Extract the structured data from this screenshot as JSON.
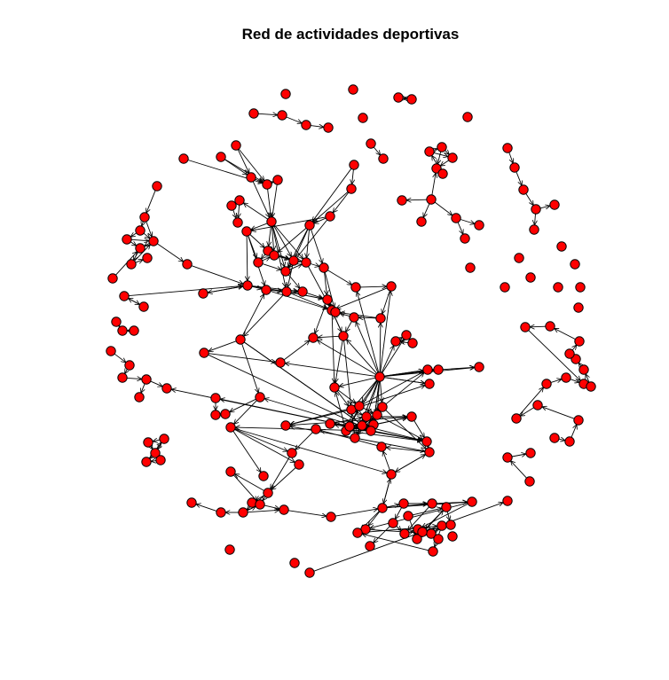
{
  "title": "Red de actividades deportivas",
  "colors": {
    "node_fill": "#ff0000",
    "node_stroke": "#000000",
    "edge": "#000000",
    "background": "#ffffff"
  },
  "graph": {
    "directed": true,
    "node_count": 200,
    "edge_count": 296,
    "node_shape": "circle",
    "arrowheads": true
  }
}
